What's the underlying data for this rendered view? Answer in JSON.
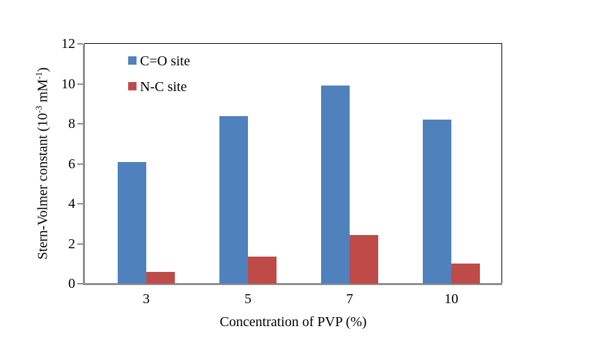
{
  "chart_data": {
    "type": "bar",
    "title": "",
    "categories": [
      "3",
      "5",
      "7",
      "10"
    ],
    "series": [
      {
        "name": "C=O site",
        "color": "#4F81BD",
        "values": [
          6.1,
          8.4,
          9.9,
          8.2
        ]
      },
      {
        "name": "N-C site",
        "color": "#BE4B48",
        "values": [
          0.6,
          1.35,
          2.45,
          1.0
        ]
      }
    ],
    "xlabel": "Concentration of PVP (%)",
    "ylabel": "Stern-Volmer constant (10⁻³ mM⁻¹)",
    "ylabel_parts": [
      {
        "text": "Stern-Volmer constant (10"
      },
      {
        "sup": "-3"
      },
      {
        "text": " mM"
      },
      {
        "sup": "-1"
      },
      {
        "text": ")"
      }
    ],
    "ylim": [
      0,
      12
    ],
    "yticks": [
      0,
      2,
      4,
      6,
      8,
      10,
      12
    ],
    "grid": false,
    "legend_position": "top-left-inside",
    "axis_color": "#8f8f8f",
    "frame_color": "#000000",
    "background": "#ffffff"
  }
}
